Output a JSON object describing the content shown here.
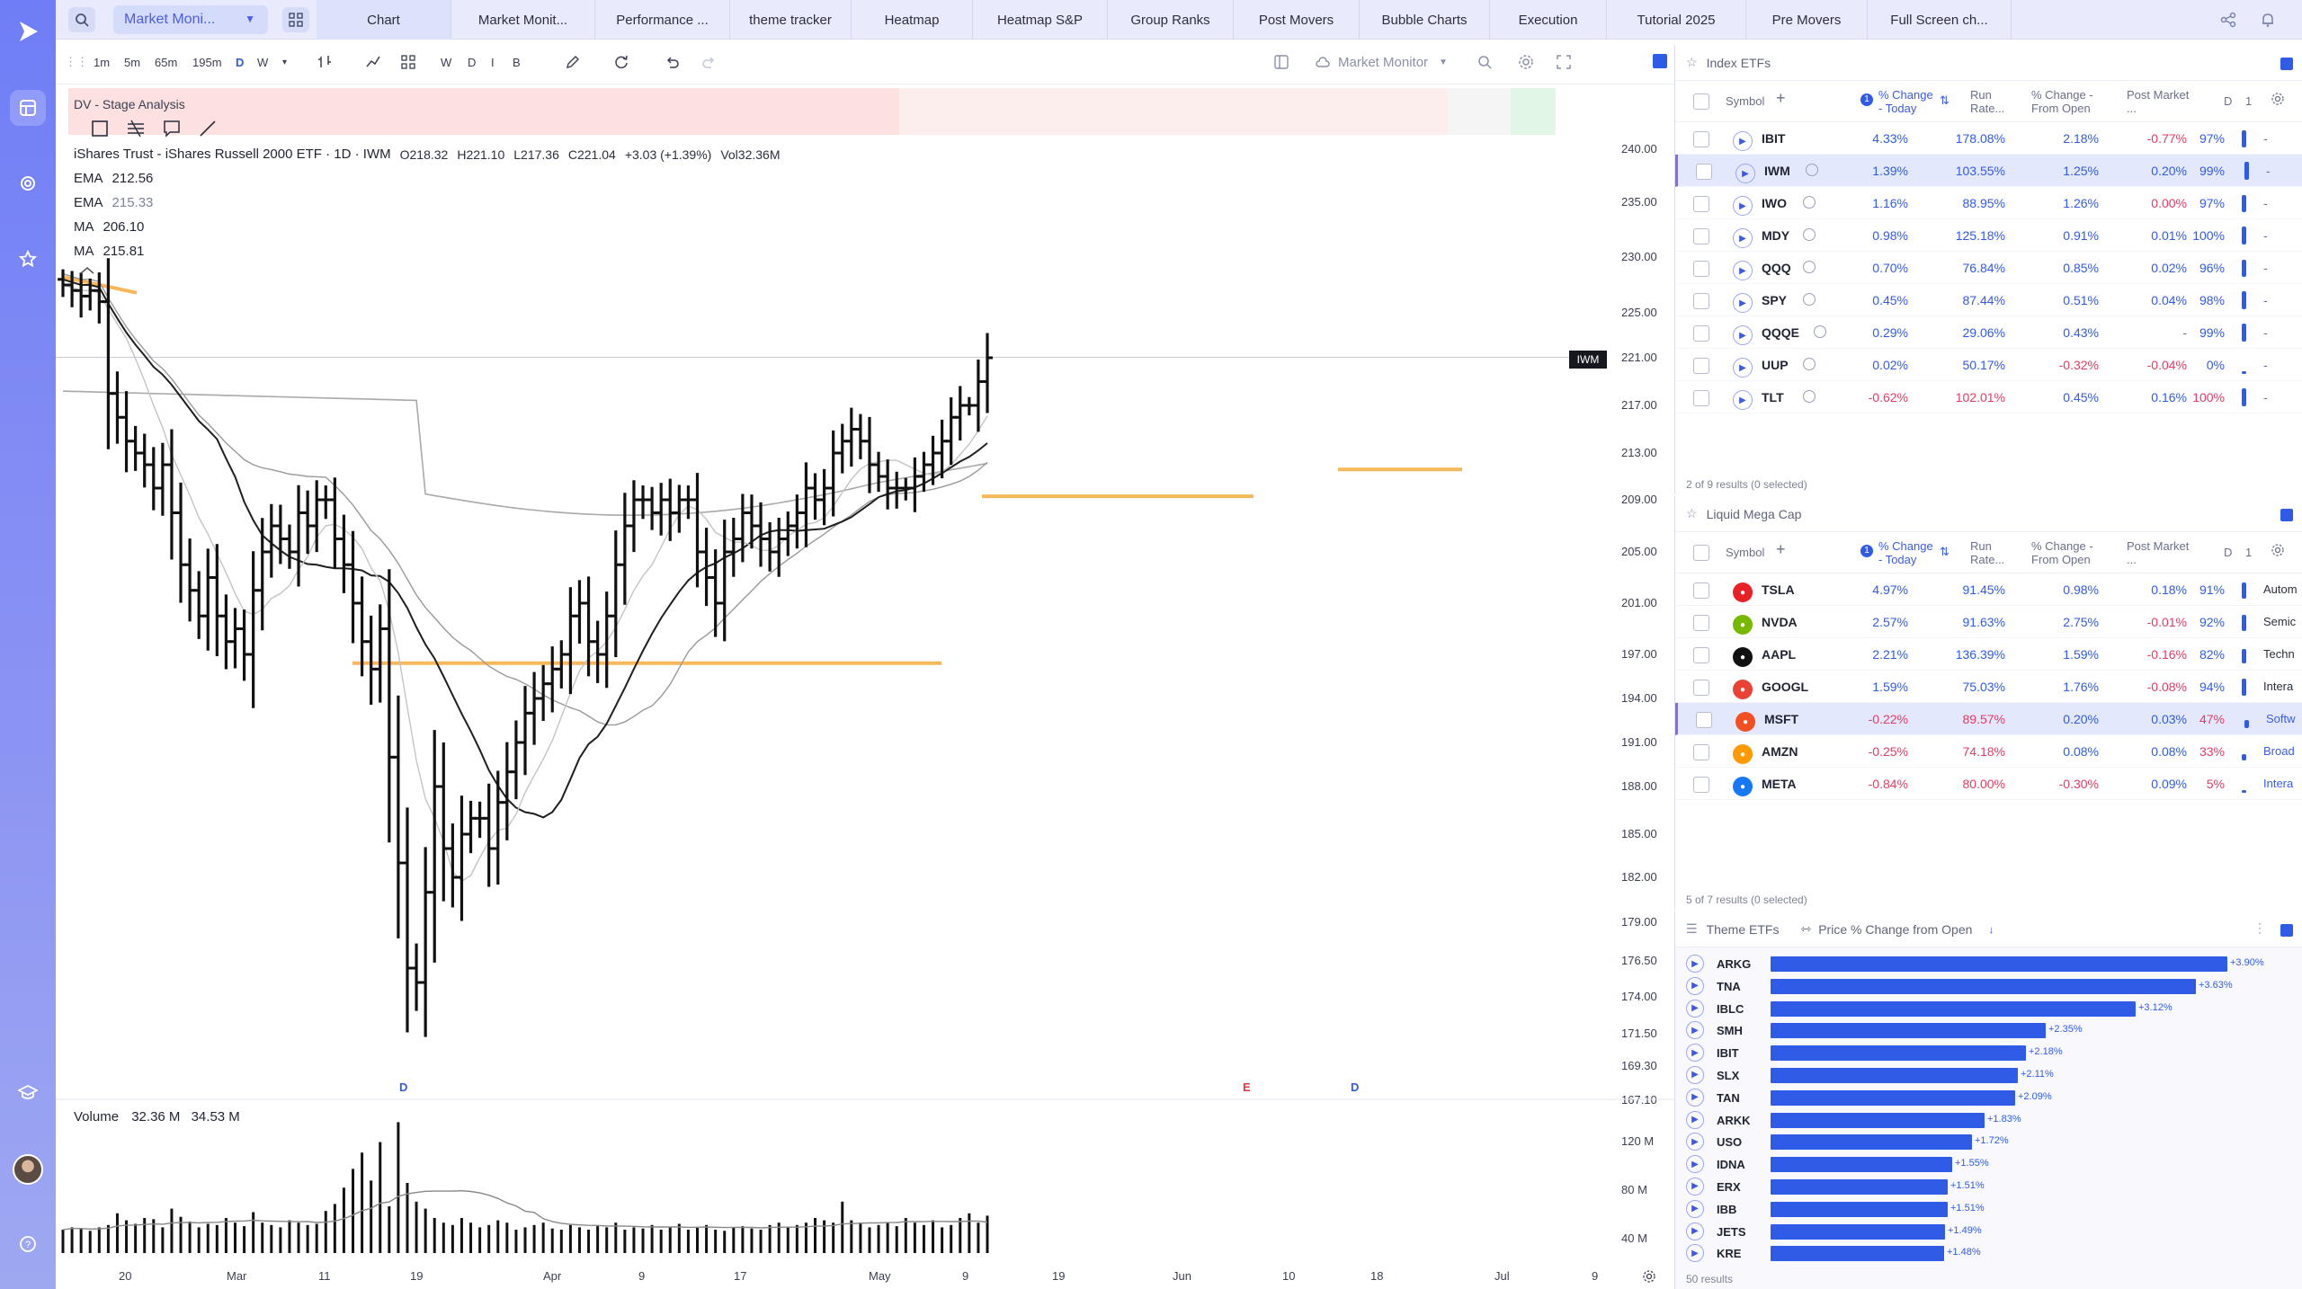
{
  "topbar": {
    "combo_value": "Market Moni...",
    "tabs": [
      "Chart",
      "Market Monit...",
      "Performance ...",
      "theme tracker",
      "Heatmap",
      "Heatmap S&P",
      "Group Ranks",
      "Post Movers",
      "Bubble Charts",
      "Execution",
      "Tutorial 2025",
      "Pre Movers",
      "Full Screen ch..."
    ]
  },
  "chart_toolbar": {
    "intervals": [
      "1m",
      "5m",
      "65m",
      "195m",
      "D",
      "W"
    ],
    "draw_letters": [
      "W",
      "D",
      "I",
      "B"
    ],
    "layout_name": "Market Monitor"
  },
  "chart": {
    "stage_label": "DV - Stage Analysis",
    "title": "iShares Trust - iShares Russell 2000 ETF · 1D · IWM",
    "ohlc": {
      "o": "O218.32",
      "h": "H221.10",
      "l": "L217.36",
      "c": "C221.04",
      "chg": "+3.03 (+1.39%)",
      "vol": "Vol32.36M"
    },
    "indicators": [
      {
        "name": "EMA",
        "value": "212.56"
      },
      {
        "name": "EMA",
        "value": "215.33"
      },
      {
        "name": "MA",
        "value": "206.10"
      },
      {
        "name": "MA",
        "value": "215.81"
      }
    ],
    "price_ticks": [
      "240.00",
      "235.00",
      "230.00",
      "225.00",
      "221.00",
      "217.00",
      "213.00",
      "209.00",
      "205.00",
      "201.00",
      "197.00",
      "194.00",
      "191.00",
      "188.00",
      "185.00",
      "182.00",
      "179.00",
      "176.50",
      "174.00",
      "171.50",
      "169.30",
      "167.10"
    ],
    "last_price_tag": "IWM",
    "volume_label": "Volume",
    "volume_values": [
      "32.36 M",
      "34.53 M"
    ],
    "volume_ticks": [
      "120 M",
      "80 M",
      "40 M"
    ],
    "time_ticks": [
      "20",
      "Mar",
      "11",
      "19",
      "Apr",
      "9",
      "17",
      "May",
      "9",
      "19",
      "Jun",
      "10",
      "18",
      "Jul",
      "9"
    ],
    "event_markers": [
      {
        "label": "D",
        "color": "#2f5be6"
      },
      {
        "label": "E",
        "color": "#e63a3a"
      },
      {
        "label": "D",
        "color": "#2f5be6"
      }
    ]
  },
  "chart_data": {
    "type": "ohlc",
    "title": "iShares Trust - iShares Russell 2000 ETF · 1D · IWM",
    "ylim": [
      167.1,
      240.0
    ],
    "x": [
      "Feb 20",
      "Mar",
      "Mar 11",
      "Mar 19",
      "Apr",
      "Apr 9",
      "Apr 17",
      "May",
      "May 9",
      "May 19",
      "Jun",
      "Jun 10",
      "Jun 18",
      "Jul"
    ],
    "close_approx": [
      227.5,
      213,
      201,
      206,
      197,
      180,
      186,
      196,
      209,
      205,
      213,
      211,
      214,
      221
    ],
    "last": {
      "open": 218.32,
      "high": 221.1,
      "low": 217.36,
      "close": 221.04,
      "change": 3.03,
      "change_pct": 1.39,
      "volume_m": 32.36
    }
  },
  "index_etfs": {
    "title": "Index ETFs",
    "columns": [
      "Symbol",
      "% Change - Today",
      "Run Rate...",
      "% Change - From Open",
      "Post Market ...",
      "D",
      "1"
    ],
    "rows": [
      {
        "sym": "IBIT",
        "chg": "4.33%",
        "run": "178.08%",
        "open": "2.18%",
        "post": "-0.77%",
        "d": "97%",
        "x": "-",
        "chg_s": "pos",
        "open_s": "pos",
        "post_s": "neg",
        "selected": false
      },
      {
        "sym": "IWM",
        "chg": "1.39%",
        "run": "103.55%",
        "open": "1.25%",
        "post": "0.20%",
        "d": "99%",
        "x": "-",
        "chg_s": "pos",
        "open_s": "pos",
        "post_s": "pos",
        "selected": true
      },
      {
        "sym": "IWO",
        "chg": "1.16%",
        "run": "88.95%",
        "open": "1.26%",
        "post": "0.00%",
        "d": "97%",
        "x": "-",
        "chg_s": "pos",
        "open_s": "pos",
        "post_s": "neg",
        "selected": false
      },
      {
        "sym": "MDY",
        "chg": "0.98%",
        "run": "125.18%",
        "open": "0.91%",
        "post": "0.01%",
        "d": "100%",
        "x": "-",
        "chg_s": "pos",
        "open_s": "pos",
        "post_s": "pos",
        "selected": false
      },
      {
        "sym": "QQQ",
        "chg": "0.70%",
        "run": "76.84%",
        "open": "0.85%",
        "post": "0.02%",
        "d": "96%",
        "x": "-",
        "chg_s": "pos",
        "open_s": "pos",
        "post_s": "pos",
        "selected": false
      },
      {
        "sym": "SPY",
        "chg": "0.45%",
        "run": "87.44%",
        "open": "0.51%",
        "post": "0.04%",
        "d": "98%",
        "x": "-",
        "chg_s": "pos",
        "open_s": "pos",
        "post_s": "pos",
        "selected": false
      },
      {
        "sym": "QQQE",
        "chg": "0.29%",
        "run": "29.06%",
        "open": "0.43%",
        "post": "-",
        "d": "99%",
        "x": "-",
        "chg_s": "pos",
        "open_s": "pos",
        "post_s": "dash",
        "selected": false
      },
      {
        "sym": "UUP",
        "chg": "0.02%",
        "run": "50.17%",
        "open": "-0.32%",
        "post": "-0.04%",
        "d": "0%",
        "x": "-",
        "chg_s": "pos",
        "open_s": "neg",
        "post_s": "neg",
        "selected": false
      },
      {
        "sym": "TLT",
        "chg": "-0.62%",
        "run": "102.01%",
        "open": "0.45%",
        "post": "0.16%",
        "d": "100%",
        "x": "-",
        "chg_s": "neg",
        "open_s": "pos",
        "post_s": "pos",
        "selected": false
      }
    ],
    "footer": "2 of 9 results (0 selected)"
  },
  "mega_cap": {
    "title": "Liquid Mega Cap",
    "rows": [
      {
        "sym": "TSLA",
        "chg": "4.97%",
        "run": "91.45%",
        "open": "0.98%",
        "post": "0.18%",
        "d": "91%",
        "x": "Autom",
        "chg_s": "pos",
        "open_s": "pos",
        "post_s": "pos",
        "logo": "#e82127",
        "selected": false
      },
      {
        "sym": "NVDA",
        "chg": "2.57%",
        "run": "91.63%",
        "open": "2.75%",
        "post": "-0.01%",
        "d": "92%",
        "x": "Semic",
        "chg_s": "pos",
        "open_s": "pos",
        "post_s": "neg",
        "logo": "#76b900",
        "selected": false
      },
      {
        "sym": "AAPL",
        "chg": "2.21%",
        "run": "136.39%",
        "open": "1.59%",
        "post": "-0.16%",
        "d": "82%",
        "x": "Techn",
        "chg_s": "pos",
        "open_s": "pos",
        "post_s": "neg",
        "logo": "#111111",
        "selected": false
      },
      {
        "sym": "GOOGL",
        "chg": "1.59%",
        "run": "75.03%",
        "open": "1.76%",
        "post": "-0.08%",
        "d": "94%",
        "x": "Intera",
        "chg_s": "pos",
        "open_s": "pos",
        "post_s": "neg",
        "logo": "#ea4335",
        "selected": false
      },
      {
        "sym": "MSFT",
        "chg": "-0.22%",
        "run": "89.57%",
        "open": "0.20%",
        "post": "0.03%",
        "d": "47%",
        "x": "Softw",
        "chg_s": "neg",
        "open_s": "pos",
        "post_s": "pos",
        "logo": "#f25022",
        "selected": true
      },
      {
        "sym": "AMZN",
        "chg": "-0.25%",
        "run": "74.18%",
        "open": "0.08%",
        "post": "0.08%",
        "d": "33%",
        "x": "Broad",
        "chg_s": "neg",
        "open_s": "pos",
        "post_s": "pos",
        "logo": "#ff9900",
        "selected": false
      },
      {
        "sym": "META",
        "chg": "-0.84%",
        "run": "80.00%",
        "open": "-0.30%",
        "post": "0.09%",
        "d": "5%",
        "x": "Intera",
        "chg_s": "neg",
        "open_s": "neg",
        "post_s": "pos",
        "logo": "#1877f2",
        "selected": false
      }
    ],
    "footer": "5 of 7 results (0 selected)"
  },
  "theme_etfs": {
    "title": "Theme ETFs",
    "metric": "Price % Change from Open",
    "rows": [
      {
        "sym": "ARKG",
        "v": 3.9,
        "label": "+3.90%"
      },
      {
        "sym": "TNA",
        "v": 3.63,
        "label": "+3.63%"
      },
      {
        "sym": "IBLC",
        "v": 3.12,
        "label": "+3.12%"
      },
      {
        "sym": "SMH",
        "v": 2.35,
        "label": "+2.35%"
      },
      {
        "sym": "IBIT",
        "v": 2.18,
        "label": "+2.18%"
      },
      {
        "sym": "SLX",
        "v": 2.11,
        "label": "+2.11%"
      },
      {
        "sym": "TAN",
        "v": 2.09,
        "label": "+2.09%"
      },
      {
        "sym": "ARKK",
        "v": 1.83,
        "label": "+1.83%"
      },
      {
        "sym": "USO",
        "v": 1.72,
        "label": "+1.72%"
      },
      {
        "sym": "IDNA",
        "v": 1.55,
        "label": "+1.55%"
      },
      {
        "sym": "ERX",
        "v": 1.51,
        "label": "+1.51%"
      },
      {
        "sym": "IBB",
        "v": 1.51,
        "label": "+1.51%"
      },
      {
        "sym": "JETS",
        "v": 1.49,
        "label": "+1.49%"
      },
      {
        "sym": "KRE",
        "v": 1.48,
        "label": "+1.48%"
      }
    ],
    "footer": "50 results"
  },
  "colors": {
    "accent": "#2f5be6",
    "negative": "#e63a62",
    "ma_orange": "#f7b85a"
  }
}
